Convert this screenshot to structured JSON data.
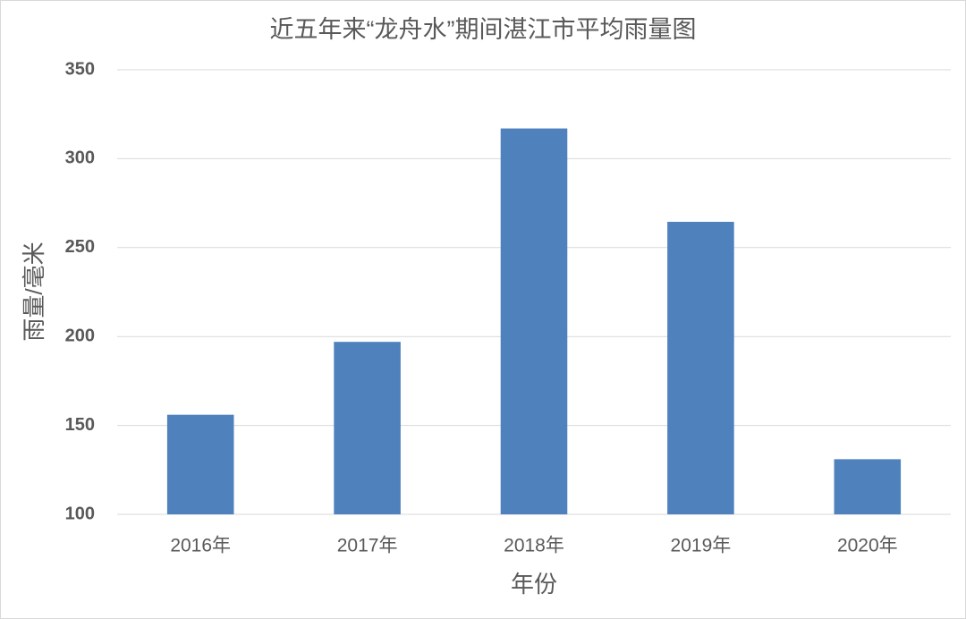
{
  "chart_data": {
    "type": "bar",
    "title": "近五年来“龙舟水”期间湛江市平均雨量图",
    "x_label": "年份",
    "y_label": "雨量/毫米",
    "categories": [
      "2016年",
      "2017年",
      "2018年",
      "2019年",
      "2020年"
    ],
    "values": [
      156,
      197,
      317,
      264.5,
      131
    ],
    "color": "#4f81bd",
    "ylim": [
      100,
      350
    ],
    "yticks": [
      100,
      150,
      200,
      250,
      300,
      350
    ],
    "grid": true
  }
}
